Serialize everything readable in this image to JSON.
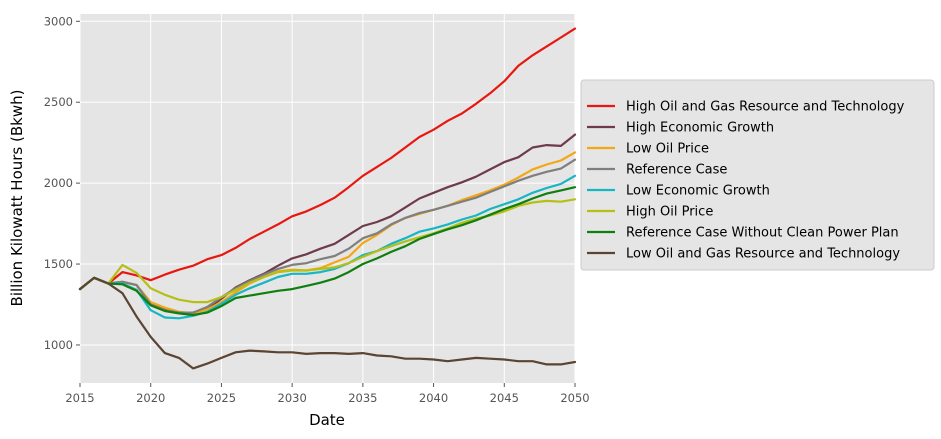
{
  "chart_data": {
    "type": "line",
    "title": "",
    "xlabel": "Date",
    "ylabel": "Billion Kilowatt Hours (Bkwh)",
    "xlim": [
      2015,
      2050
    ],
    "ylim": [
      765,
      3045
    ],
    "xticks": [
      2015,
      2020,
      2025,
      2030,
      2035,
      2040,
      2045,
      2050
    ],
    "yticks": [
      1000,
      1500,
      2000,
      2500,
      3000
    ],
    "grid": true,
    "legend_position": "right",
    "x": [
      2015,
      2016,
      2017,
      2018,
      2019,
      2020,
      2021,
      2022,
      2023,
      2024,
      2025,
      2026,
      2027,
      2028,
      2029,
      2030,
      2031,
      2032,
      2033,
      2034,
      2035,
      2036,
      2037,
      2038,
      2039,
      2040,
      2041,
      2042,
      2043,
      2044,
      2045,
      2046,
      2047,
      2048,
      2049,
      2050
    ],
    "series": [
      {
        "name": "High Oil and Gas Resource and Technology",
        "color": "#e8170f",
        "values": [
          1345,
          1415,
          1380,
          1450,
          1430,
          1400,
          1435,
          1465,
          1490,
          1530,
          1555,
          1600,
          1655,
          1700,
          1745,
          1795,
          1825,
          1865,
          1910,
          1975,
          2045,
          2100,
          2155,
          2220,
          2285,
          2330,
          2385,
          2430,
          2490,
          2555,
          2630,
          2725,
          2790,
          2845,
          2900,
          2955
        ]
      },
      {
        "name": "High Economic Growth",
        "color": "#6e3b4c",
        "values": [
          1345,
          1415,
          1380,
          1390,
          1370,
          1250,
          1220,
          1200,
          1200,
          1225,
          1285,
          1355,
          1400,
          1440,
          1490,
          1535,
          1560,
          1595,
          1625,
          1680,
          1735,
          1760,
          1795,
          1850,
          1905,
          1940,
          1975,
          2005,
          2040,
          2085,
          2130,
          2160,
          2220,
          2235,
          2230,
          2300
        ]
      },
      {
        "name": "Low Oil Price",
        "color": "#f4a714",
        "values": [
          1345,
          1415,
          1380,
          1390,
          1370,
          1265,
          1230,
          1205,
          1195,
          1220,
          1265,
          1325,
          1380,
          1420,
          1455,
          1465,
          1460,
          1475,
          1510,
          1545,
          1630,
          1680,
          1740,
          1785,
          1810,
          1835,
          1860,
          1895,
          1925,
          1955,
          1990,
          2035,
          2085,
          2115,
          2140,
          2190
        ]
      },
      {
        "name": "Reference Case",
        "color": "#7f7f7f",
        "values": [
          1345,
          1415,
          1380,
          1390,
          1370,
          1250,
          1215,
          1200,
          1200,
          1235,
          1295,
          1350,
          1395,
          1435,
          1470,
          1495,
          1505,
          1530,
          1550,
          1595,
          1660,
          1690,
          1745,
          1785,
          1815,
          1835,
          1860,
          1885,
          1910,
          1945,
          1980,
          2015,
          2045,
          2070,
          2090,
          2145
        ]
      },
      {
        "name": "Low Economic Growth",
        "color": "#17b6c4",
        "values": [
          1345,
          1415,
          1380,
          1380,
          1340,
          1215,
          1170,
          1165,
          1180,
          1205,
          1255,
          1310,
          1350,
          1385,
          1420,
          1440,
          1440,
          1450,
          1470,
          1505,
          1555,
          1580,
          1625,
          1660,
          1700,
          1720,
          1745,
          1775,
          1800,
          1840,
          1870,
          1900,
          1940,
          1970,
          1995,
          2045
        ]
      },
      {
        "name": "High Oil Price",
        "color": "#b5bf14",
        "values": [
          1345,
          1415,
          1380,
          1495,
          1445,
          1350,
          1310,
          1280,
          1265,
          1265,
          1295,
          1340,
          1385,
          1420,
          1450,
          1460,
          1460,
          1470,
          1480,
          1505,
          1545,
          1580,
          1610,
          1640,
          1665,
          1690,
          1720,
          1755,
          1780,
          1800,
          1825,
          1860,
          1880,
          1890,
          1885,
          1900
        ]
      },
      {
        "name": "Reference Case Without Clean Power Plan",
        "color": "#0f7f0f",
        "values": [
          1345,
          1415,
          1380,
          1375,
          1335,
          1245,
          1210,
          1195,
          1185,
          1200,
          1240,
          1290,
          1305,
          1320,
          1335,
          1345,
          1365,
          1385,
          1410,
          1450,
          1500,
          1535,
          1575,
          1610,
          1655,
          1685,
          1715,
          1740,
          1770,
          1805,
          1840,
          1870,
          1905,
          1935,
          1955,
          1975
        ]
      },
      {
        "name": "Low Oil and Gas Resource and Technology",
        "color": "#5b4432",
        "values": [
          1345,
          1415,
          1380,
          1320,
          1175,
          1050,
          950,
          920,
          855,
          885,
          920,
          955,
          965,
          960,
          955,
          955,
          945,
          950,
          950,
          945,
          950,
          935,
          930,
          915,
          915,
          910,
          900,
          910,
          920,
          915,
          910,
          900,
          900,
          880,
          880,
          895
        ]
      }
    ]
  }
}
